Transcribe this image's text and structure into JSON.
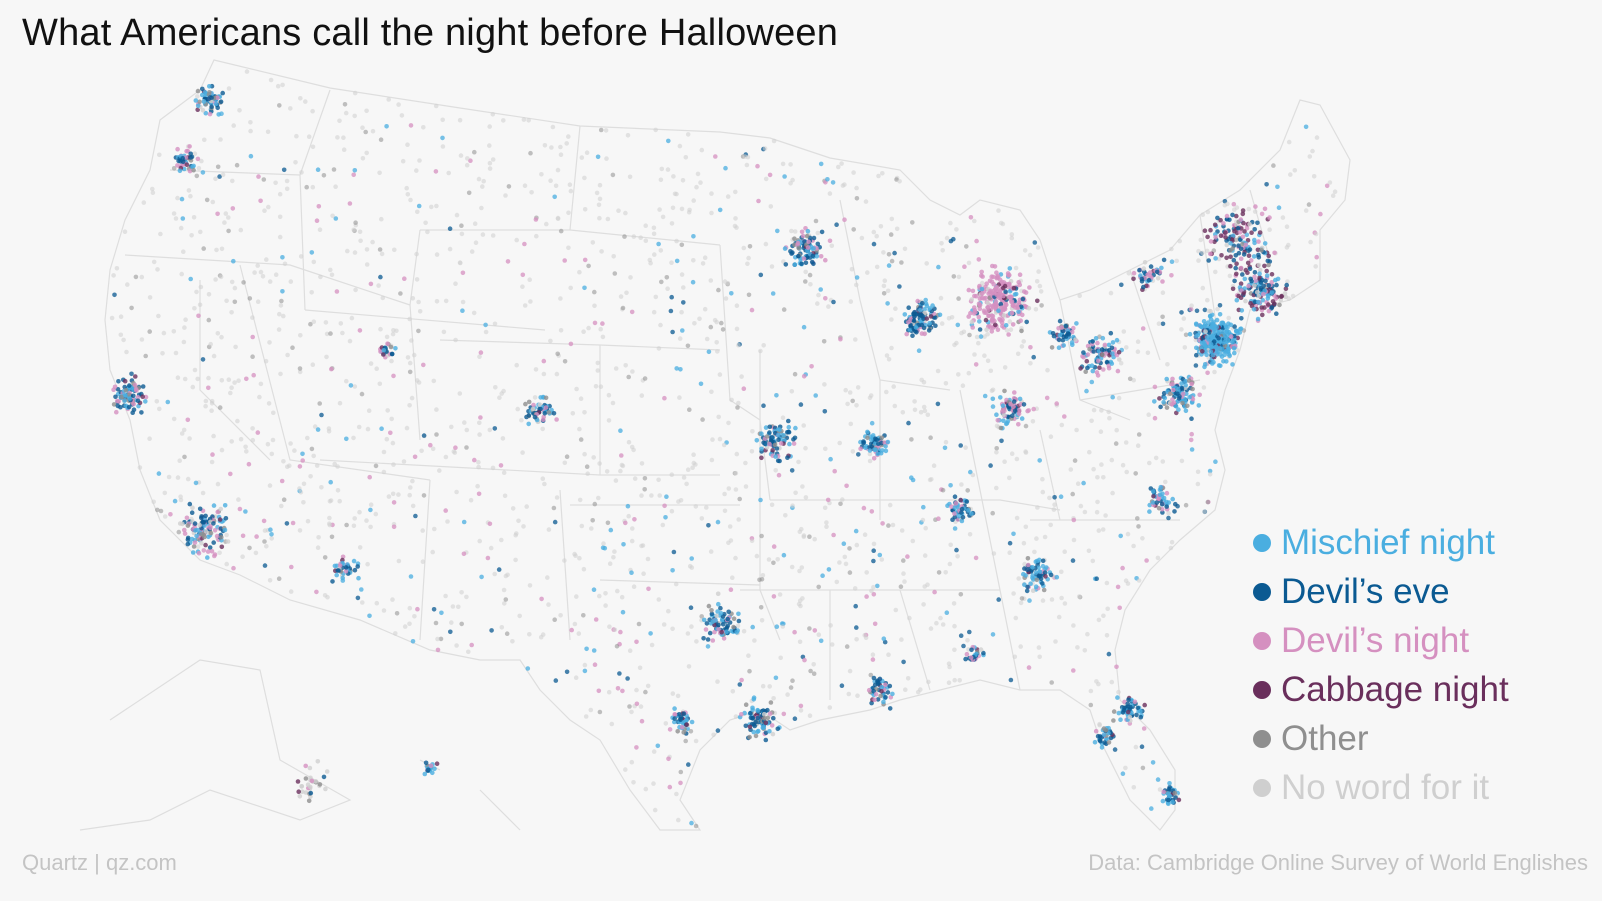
{
  "title": "What Americans call the night before Halloween",
  "legend": [
    {
      "label": "Mischief night",
      "color": "#4aaee0"
    },
    {
      "label": "Devil’s eve",
      "color": "#0b5a92"
    },
    {
      "label": "Devil’s night",
      "color": "#d590c0"
    },
    {
      "label": "Cabbage night",
      "color": "#6a2f5c"
    },
    {
      "label": "Other",
      "color": "#8f8f8f"
    },
    {
      "label": "No word for it",
      "color": "#cfcfcf"
    }
  ],
  "footer": {
    "source_left": "Quartz | qz.com",
    "source_right": "Data: Cambridge Online Survey of World Englishes"
  }
}
